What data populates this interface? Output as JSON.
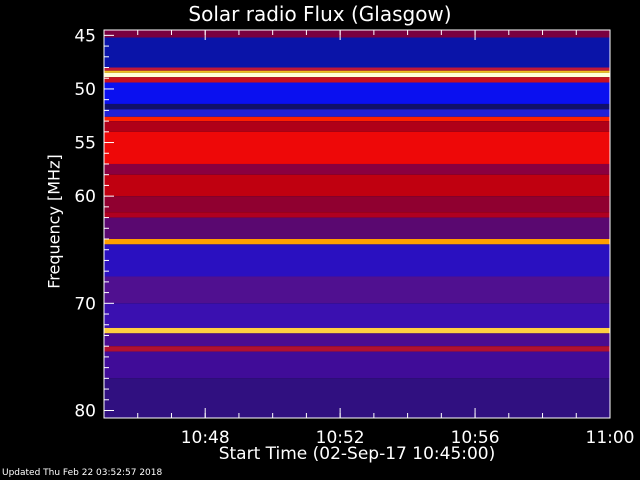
{
  "chart_data": {
    "type": "heatmap",
    "title": "Solar radio Flux (Glasgow)",
    "xlabel": "Start Time (02-Sep-17 10:45:00)",
    "ylabel": "Frequency [MHz]",
    "x_range": [
      "10:45",
      "11:00"
    ],
    "ylim": [
      44.5,
      80.7
    ],
    "x_ticks": [
      "10:48",
      "10:52",
      "10:56",
      "11:00"
    ],
    "y_ticks": [
      45,
      50,
      55,
      60,
      70,
      80
    ],
    "bands": [
      {
        "f0": 44.5,
        "f1": 45.2,
        "color": "#7a0040"
      },
      {
        "f0": 45.2,
        "f1": 48.0,
        "color": "#0a14a8"
      },
      {
        "f0": 48.0,
        "f1": 48.3,
        "color": "#c01838"
      },
      {
        "f0": 48.3,
        "f1": 48.5,
        "color": "#f0c020"
      },
      {
        "f0": 48.5,
        "f1": 48.9,
        "color": "#ffffd8"
      },
      {
        "f0": 48.9,
        "f1": 49.4,
        "color": "#c81020"
      },
      {
        "f0": 49.4,
        "f1": 51.4,
        "color": "#0a10f0"
      },
      {
        "f0": 51.4,
        "f1": 51.9,
        "color": "#10106a"
      },
      {
        "f0": 51.9,
        "f1": 52.6,
        "color": "#2020d8"
      },
      {
        "f0": 52.6,
        "f1": 53.0,
        "color": "#ff2000"
      },
      {
        "f0": 53.0,
        "f1": 54.0,
        "color": "#b00018"
      },
      {
        "f0": 54.0,
        "f1": 57.0,
        "color": "#ee0808"
      },
      {
        "f0": 57.0,
        "f1": 58.0,
        "color": "#8a0040"
      },
      {
        "f0": 58.0,
        "f1": 60.0,
        "color": "#c00010"
      },
      {
        "f0": 60.0,
        "f1": 61.5,
        "color": "#900030"
      },
      {
        "f0": 61.5,
        "f1": 62.0,
        "color": "#b00020"
      },
      {
        "f0": 62.0,
        "f1": 64.0,
        "color": "#5a0870"
      },
      {
        "f0": 64.0,
        "f1": 64.5,
        "color": "#ffa000"
      },
      {
        "f0": 64.5,
        "f1": 67.5,
        "color": "#2a10c0"
      },
      {
        "f0": 67.5,
        "f1": 70.0,
        "color": "#501090"
      },
      {
        "f0": 70.0,
        "f1": 72.3,
        "color": "#3a10b0"
      },
      {
        "f0": 72.3,
        "f1": 72.8,
        "color": "#ffd040"
      },
      {
        "f0": 72.8,
        "f1": 74.0,
        "color": "#4a0c90"
      },
      {
        "f0": 74.0,
        "f1": 74.5,
        "color": "#b01030"
      },
      {
        "f0": 74.5,
        "f1": 77.0,
        "color": "#400c98"
      },
      {
        "f0": 77.0,
        "f1": 80.7,
        "color": "#301080"
      }
    ],
    "grid": false
  },
  "footer": "Updated Thu Feb 22 03:52:57 2018"
}
